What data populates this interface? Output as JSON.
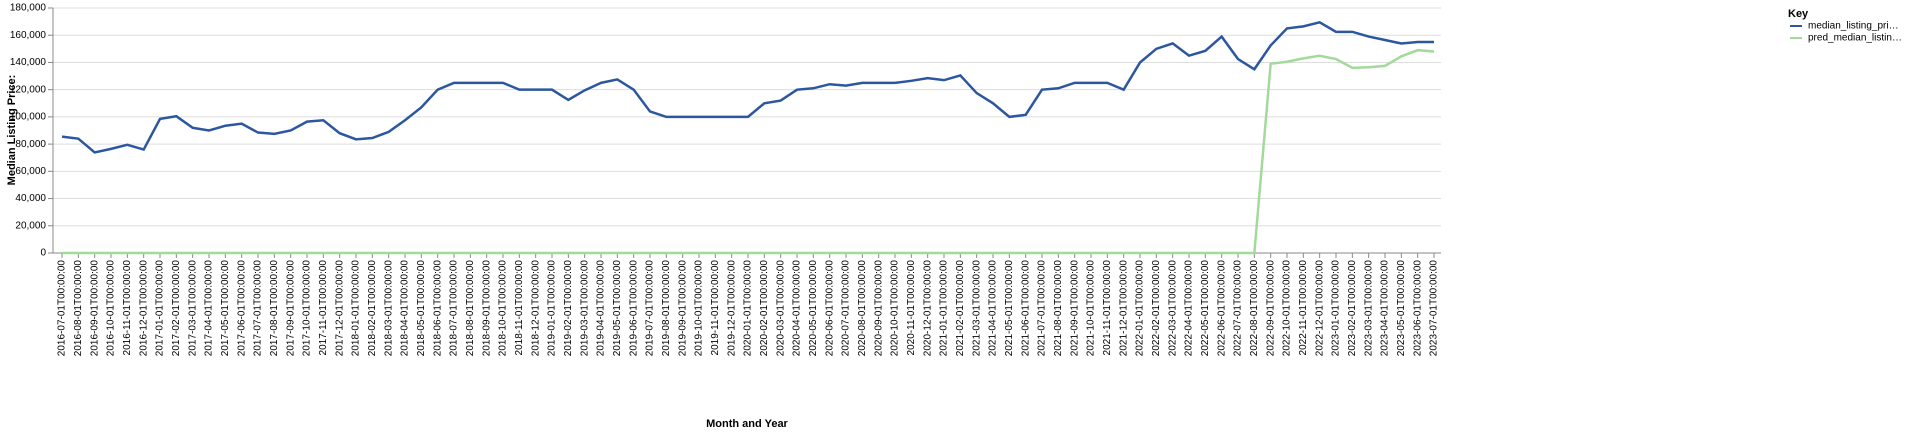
{
  "chart_data": {
    "type": "line",
    "x_label": "Month and Year",
    "y_label": "Median Listing Price:",
    "legend_title": "Key",
    "legend_position": "right",
    "grid": true,
    "categories": [
      "2016-07-01T00:00:00",
      "2016-08-01T00:00:00",
      "2016-09-01T00:00:00",
      "2016-10-01T00:00:00",
      "2016-11-01T00:00:00",
      "2016-12-01T00:00:00",
      "2017-01-01T00:00:00",
      "2017-02-01T00:00:00",
      "2017-03-01T00:00:00",
      "2017-04-01T00:00:00",
      "2017-05-01T00:00:00",
      "2017-06-01T00:00:00",
      "2017-07-01T00:00:00",
      "2017-08-01T00:00:00",
      "2017-09-01T00:00:00",
      "2017-10-01T00:00:00",
      "2017-11-01T00:00:00",
      "2017-12-01T00:00:00",
      "2018-01-01T00:00:00",
      "2018-02-01T00:00:00",
      "2018-03-01T00:00:00",
      "2018-04-01T00:00:00",
      "2018-05-01T00:00:00",
      "2018-06-01T00:00:00",
      "2018-07-01T00:00:00",
      "2018-08-01T00:00:00",
      "2018-09-01T00:00:00",
      "2018-10-01T00:00:00",
      "2018-11-01T00:00:00",
      "2018-12-01T00:00:00",
      "2019-01-01T00:00:00",
      "2019-02-01T00:00:00",
      "2019-03-01T00:00:00",
      "2019-04-01T00:00:00",
      "2019-05-01T00:00:00",
      "2019-06-01T00:00:00",
      "2019-07-01T00:00:00",
      "2019-08-01T00:00:00",
      "2019-09-01T00:00:00",
      "2019-10-01T00:00:00",
      "2019-11-01T00:00:00",
      "2019-12-01T00:00:00",
      "2020-01-01T00:00:00",
      "2020-02-01T00:00:00",
      "2020-03-01T00:00:00",
      "2020-04-01T00:00:00",
      "2020-05-01T00:00:00",
      "2020-06-01T00:00:00",
      "2020-07-01T00:00:00",
      "2020-08-01T00:00:00",
      "2020-09-01T00:00:00",
      "2020-10-01T00:00:00",
      "2020-11-01T00:00:00",
      "2020-12-01T00:00:00",
      "2021-01-01T00:00:00",
      "2021-02-01T00:00:00",
      "2021-03-01T00:00:00",
      "2021-04-01T00:00:00",
      "2021-05-01T00:00:00",
      "2021-06-01T00:00:00",
      "2021-07-01T00:00:00",
      "2021-08-01T00:00:00",
      "2021-09-01T00:00:00",
      "2021-10-01T00:00:00",
      "2021-11-01T00:00:00",
      "2021-12-01T00:00:00",
      "2022-01-01T00:00:00",
      "2022-02-01T00:00:00",
      "2022-03-01T00:00:00",
      "2022-04-01T00:00:00",
      "2022-05-01T00:00:00",
      "2022-06-01T00:00:00",
      "2022-07-01T00:00:00",
      "2022-08-01T00:00:00",
      "2022-09-01T00:00:00",
      "2022-10-01T00:00:00",
      "2022-11-01T00:00:00",
      "2022-12-01T00:00:00",
      "2023-01-01T00:00:00",
      "2023-02-01T00:00:00",
      "2023-03-01T00:00:00",
      "2023-04-01T00:00:00",
      "2023-05-01T00:00:00",
      "2023-06-01T00:00:00",
      "2023-07-01T00:00:00"
    ],
    "series": [
      {
        "name": "median_listing_pri…",
        "color": "#2c57a0",
        "values": [
          85500,
          84000,
          73900,
          76500,
          79500,
          76000,
          98500,
          100500,
          92000,
          90000,
          93500,
          95000,
          88500,
          87500,
          90000,
          96500,
          97500,
          88000,
          83500,
          84500,
          89000,
          97500,
          107000,
          120000,
          125000,
          125000,
          125000,
          125000,
          120000,
          120000,
          120000,
          112500,
          119500,
          125000,
          127500,
          120000,
          104000,
          100000,
          100000,
          100000,
          100000,
          100000,
          100000,
          110000,
          112000,
          120000,
          121000,
          124000,
          123000,
          125000,
          125000,
          125000,
          126500,
          128500,
          127000,
          130500,
          117500,
          110000,
          100000,
          101500,
          120000,
          121000,
          125000,
          125000,
          125000,
          120000,
          140000,
          150000,
          154000,
          145000,
          148500,
          159000,
          142500,
          135000,
          152500,
          165000,
          166500,
          169500,
          162500,
          162500,
          159000,
          156500,
          153900,
          155000,
          155000
        ]
      },
      {
        "name": "pred_median_listin…",
        "color": "#a3d99b",
        "values": [
          0,
          0,
          0,
          0,
          0,
          0,
          0,
          0,
          0,
          0,
          0,
          0,
          0,
          0,
          0,
          0,
          0,
          0,
          0,
          0,
          0,
          0,
          0,
          0,
          0,
          0,
          0,
          0,
          0,
          0,
          0,
          0,
          0,
          0,
          0,
          0,
          0,
          0,
          0,
          0,
          0,
          0,
          0,
          0,
          0,
          0,
          0,
          0,
          0,
          0,
          0,
          0,
          0,
          0,
          0,
          0,
          0,
          0,
          0,
          0,
          0,
          0,
          0,
          0,
          0,
          0,
          0,
          0,
          0,
          0,
          0,
          0,
          0,
          0,
          139000,
          140500,
          143000,
          144900,
          142500,
          136000,
          136500,
          137500,
          144500,
          149000,
          148000
        ]
      }
    ],
    "ylim": [
      0,
      180000
    ],
    "yticks": [
      0,
      {
        "value": 20000,
        "label": "20,000"
      },
      {
        "value": 40000,
        "label": "40,000"
      },
      {
        "value": 60000,
        "label": "60,000"
      },
      {
        "value": 80000,
        "label": "80,000"
      },
      {
        "value": 100000,
        "label": "100,000"
      },
      {
        "value": 120000,
        "label": "120,000"
      },
      {
        "value": 140000,
        "label": "140,000"
      },
      {
        "value": 160000,
        "label": "160,000"
      },
      {
        "value": 180000,
        "label": "180,000"
      }
    ]
  }
}
